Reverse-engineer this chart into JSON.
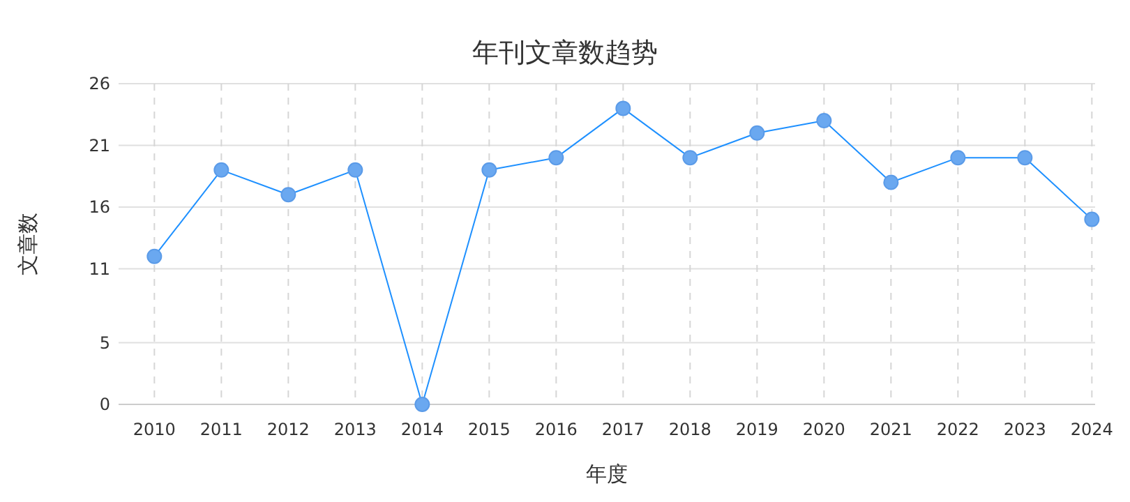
{
  "chart_data": {
    "type": "line",
    "title": "年刊文章数趋势",
    "xlabel": "年度",
    "ylabel": "文章数",
    "categories": [
      "2010",
      "2011",
      "2012",
      "2013",
      "2014",
      "2015",
      "2016",
      "2017",
      "2018",
      "2019",
      "2020",
      "2021",
      "2022",
      "2023",
      "2024"
    ],
    "series": [
      {
        "color": "#1e90ff",
        "values": [
          12,
          19,
          17,
          19,
          0,
          19,
          20,
          24,
          20,
          22,
          23,
          18,
          20,
          20,
          15
        ]
      }
    ],
    "ylim": [
      0,
      26
    ],
    "yticks": [
      0,
      5,
      11,
      16,
      21,
      26
    ],
    "grid": true,
    "marker": "circle",
    "line_style": "solid"
  }
}
